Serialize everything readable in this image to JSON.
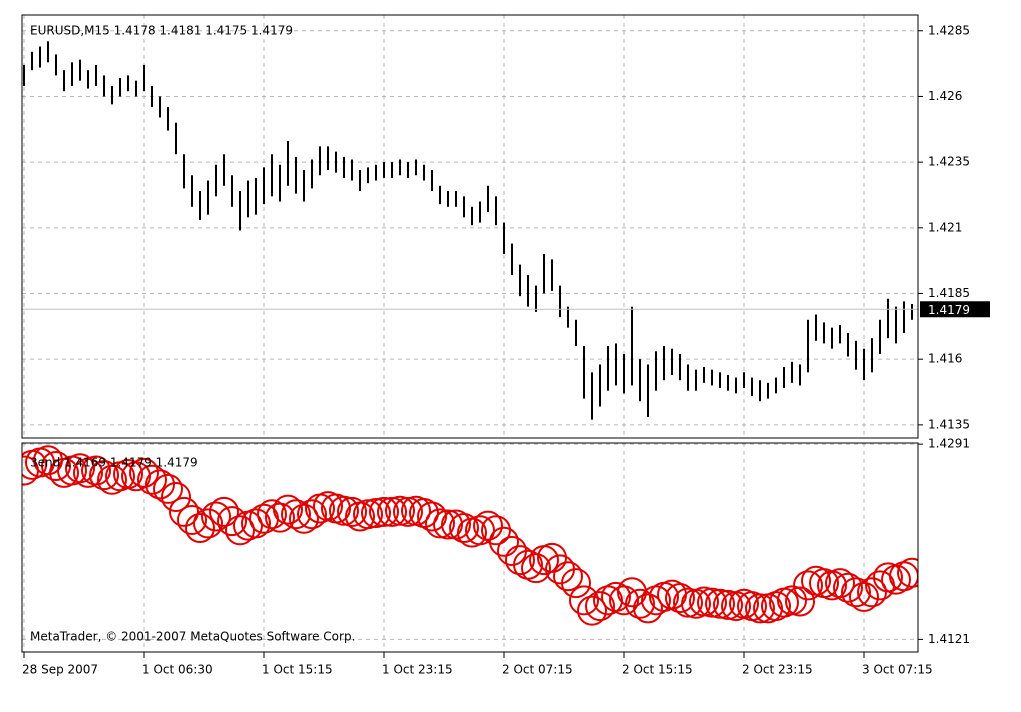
{
  "chart_data": [
    {
      "type": "ohlc",
      "title": "EURUSD,M15  1.4178 1.4181 1.4175 1.4179",
      "color": "#000000",
      "grid": true,
      "ylim": [
        1.413,
        1.4291
      ],
      "yticks": [
        1.4285,
        1.426,
        1.4235,
        1.421,
        1.4185,
        1.416,
        1.4135
      ],
      "last": 1.4179,
      "high": [
        1.4272,
        1.4277,
        1.4279,
        1.4281,
        1.4276,
        1.427,
        1.4273,
        1.4274,
        1.427,
        1.4272,
        1.4268,
        1.4264,
        1.4267,
        1.4268,
        1.4266,
        1.4272,
        1.4264,
        1.426,
        1.4256,
        1.425,
        1.4238,
        1.423,
        1.4224,
        1.4228,
        1.4234,
        1.4238,
        1.423,
        1.4224,
        1.4228,
        1.4229,
        1.4233,
        1.4238,
        1.4234,
        1.4243,
        1.4237,
        1.4232,
        1.4236,
        1.4241,
        1.4241,
        1.4239,
        1.4237,
        1.4236,
        1.4232,
        1.4233,
        1.4234,
        1.4235,
        1.4235,
        1.4236,
        1.4235,
        1.4236,
        1.4234,
        1.4232,
        1.4226,
        1.4224,
        1.4224,
        1.4222,
        1.4218,
        1.422,
        1.4226,
        1.4222,
        1.4212,
        1.4204,
        1.4196,
        1.4192,
        1.4188,
        1.42,
        1.4198,
        1.4188,
        1.418,
        1.4175,
        1.4165,
        1.4155,
        1.4158,
        1.4165,
        1.4166,
        1.4162,
        1.418,
        1.416,
        1.4158,
        1.4163,
        1.4165,
        1.4164,
        1.4162,
        1.4158,
        1.4156,
        1.4157,
        1.4156,
        1.4155,
        1.4154,
        1.4153,
        1.4155,
        1.4153,
        1.4152,
        1.4151,
        1.4153,
        1.4157,
        1.4159,
        1.4158,
        1.4175,
        1.4177,
        1.4174,
        1.4172,
        1.4173,
        1.417,
        1.4167,
        1.4164,
        1.4168,
        1.4175,
        1.4183,
        1.418,
        1.4182,
        1.4181
      ],
      "low": [
        1.4264,
        1.427,
        1.4271,
        1.4273,
        1.4268,
        1.4262,
        1.4264,
        1.4266,
        1.4263,
        1.4264,
        1.426,
        1.4257,
        1.426,
        1.4262,
        1.426,
        1.4262,
        1.4256,
        1.4252,
        1.4247,
        1.4238,
        1.4225,
        1.4218,
        1.4213,
        1.4215,
        1.4222,
        1.4226,
        1.4218,
        1.4209,
        1.4214,
        1.4215,
        1.4219,
        1.4222,
        1.422,
        1.4226,
        1.4223,
        1.422,
        1.4225,
        1.423,
        1.4232,
        1.4231,
        1.4229,
        1.4228,
        1.4224,
        1.4227,
        1.4228,
        1.4229,
        1.4229,
        1.423,
        1.4229,
        1.423,
        1.4228,
        1.4224,
        1.4219,
        1.4218,
        1.4218,
        1.4214,
        1.4211,
        1.4212,
        1.4216,
        1.4211,
        1.42,
        1.4192,
        1.4184,
        1.418,
        1.4178,
        1.4185,
        1.4186,
        1.4176,
        1.4172,
        1.4165,
        1.4145,
        1.4137,
        1.4142,
        1.4148,
        1.415,
        1.4147,
        1.415,
        1.4144,
        1.4138,
        1.4148,
        1.4152,
        1.4154,
        1.4152,
        1.4148,
        1.4148,
        1.4151,
        1.415,
        1.4149,
        1.4148,
        1.4147,
        1.4149,
        1.4146,
        1.4144,
        1.4145,
        1.4147,
        1.4149,
        1.4151,
        1.415,
        1.4155,
        1.4167,
        1.4166,
        1.4164,
        1.4166,
        1.4161,
        1.4156,
        1.4152,
        1.4155,
        1.4162,
        1.4168,
        1.4166,
        1.417,
        1.4175
      ]
    },
    {
      "type": "circles",
      "title": "3end 1.4169 1.4179 1.4179",
      "annotation": "MetaTrader, © 2001-2007 MetaQuotes Software Corp.",
      "color": "#e00000",
      "grid": true,
      "ylim": [
        1.411,
        1.4292
      ],
      "yticks": [
        1.4291,
        1.4121
      ],
      "xticks": [
        {
          "value": 0,
          "label": "28 Sep 2007"
        },
        {
          "value": 15,
          "label": "1 Oct 06:30"
        },
        {
          "value": 30,
          "label": "1 Oct 15:15"
        },
        {
          "value": 45,
          "label": "1 Oct 23:15"
        },
        {
          "value": 60,
          "label": "2 Oct 07:15"
        },
        {
          "value": 75,
          "label": "2 Oct 15:15"
        },
        {
          "value": 90,
          "label": "2 Oct 23:15"
        },
        {
          "value": 105,
          "label": "3 Oct 07:15"
        }
      ],
      "values": [
        1.4268,
        1.4273,
        1.4275,
        1.4277,
        1.4272,
        1.4266,
        1.4268,
        1.427,
        1.4266,
        1.4268,
        1.4264,
        1.426,
        1.4263,
        1.4265,
        1.4263,
        1.4266,
        1.426,
        1.4256,
        1.4252,
        1.4245,
        1.4232,
        1.4225,
        1.4218,
        1.4222,
        1.4228,
        1.4232,
        1.4224,
        1.4216,
        1.422,
        1.4222,
        1.4226,
        1.423,
        1.4227,
        1.4234,
        1.423,
        1.4226,
        1.423,
        1.4235,
        1.4237,
        1.4235,
        1.4233,
        1.4232,
        1.4228,
        1.423,
        1.4231,
        1.4232,
        1.4232,
        1.4233,
        1.4232,
        1.4233,
        1.4231,
        1.4228,
        1.4222,
        1.4221,
        1.4221,
        1.4218,
        1.4214,
        1.4216,
        1.422,
        1.4216,
        1.4206,
        1.4198,
        1.419,
        1.4186,
        1.4183,
        1.419,
        1.4192,
        1.4182,
        1.4176,
        1.417,
        1.4155,
        1.4146,
        1.415,
        1.4155,
        1.4158,
        1.4155,
        1.4162,
        1.4152,
        1.4148,
        1.4155,
        1.4158,
        1.416,
        1.4157,
        1.4153,
        1.4152,
        1.4154,
        1.4153,
        1.4152,
        1.4151,
        1.415,
        1.4152,
        1.415,
        1.4148,
        1.4148,
        1.415,
        1.4153,
        1.4155,
        1.4154,
        1.4168,
        1.4172,
        1.417,
        1.4168,
        1.417,
        1.4166,
        1.4162,
        1.4158,
        1.4162,
        1.4168,
        1.4175,
        1.4173,
        1.4176,
        1.4179
      ]
    }
  ]
}
